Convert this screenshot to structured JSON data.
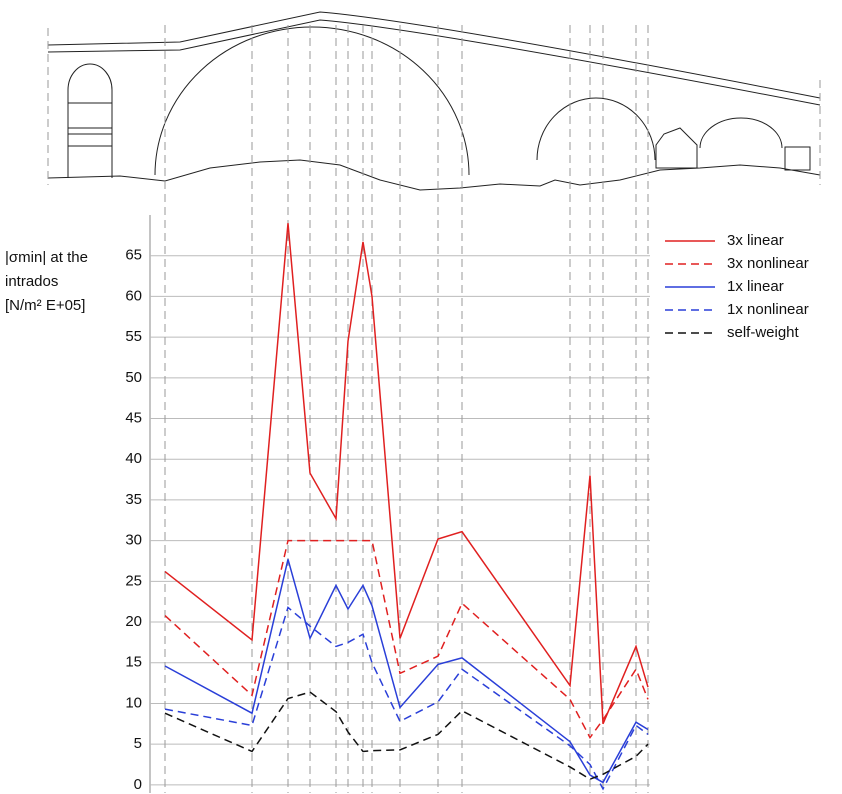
{
  "chart_data": {
    "type": "line",
    "ylabel": [
      "|σmin| at the",
      "intrados",
      "[N/m² E+05]"
    ],
    "x": [
      3,
      20.4,
      27.6,
      32,
      37.2,
      39.6,
      42.6,
      44.4,
      50,
      57.6,
      62.4,
      84,
      88,
      90.6,
      97.2,
      99.6
    ],
    "xlim": [
      0,
      100
    ],
    "ylim": [
      -1,
      70
    ],
    "yticks": [
      0,
      5,
      10,
      15,
      20,
      25,
      30,
      35,
      40,
      45,
      50,
      55,
      60,
      65
    ],
    "grid": true,
    "legend": "upper right",
    "series": [
      {
        "name": "3x linear",
        "color": "#e02020",
        "dashed": false,
        "values": [
          26.2,
          17.8,
          69,
          38.3,
          32.7,
          54.5,
          66.7,
          60,
          18,
          30.2,
          31.1,
          12.2,
          38,
          7.5,
          17,
          12
        ]
      },
      {
        "name": "3x nonlinear",
        "color": "#e02020",
        "dashed": true,
        "values": [
          20.8,
          11,
          30,
          30,
          30,
          30,
          30,
          30,
          13.7,
          15.8,
          22.3,
          10.5,
          5.8,
          8,
          14.2,
          10.5
        ]
      },
      {
        "name": "1x linear",
        "color": "#2a3fd8",
        "dashed": false,
        "values": [
          14.6,
          8.8,
          27.7,
          18,
          24.5,
          21.6,
          24.5,
          22,
          9.5,
          14.8,
          15.6,
          5.3,
          1.2,
          0.3,
          7.7,
          6.8
        ]
      },
      {
        "name": "1x nonlinear",
        "color": "#2a3fd8",
        "dashed": true,
        "values": [
          9.3,
          7.3,
          21.8,
          19.5,
          17,
          17.5,
          18.5,
          15,
          7.8,
          10.2,
          14.2,
          4.8,
          2.5,
          -0.5,
          7.3,
          6.2
        ]
      },
      {
        "name": "self-weight",
        "color": "#111111",
        "dashed": true,
        "values": [
          8.8,
          4.1,
          10.6,
          11.4,
          9,
          6.5,
          4.1,
          4.2,
          4.3,
          6.2,
          9.1,
          2.2,
          0.7,
          1.3,
          3.5,
          5
        ]
      }
    ]
  }
}
